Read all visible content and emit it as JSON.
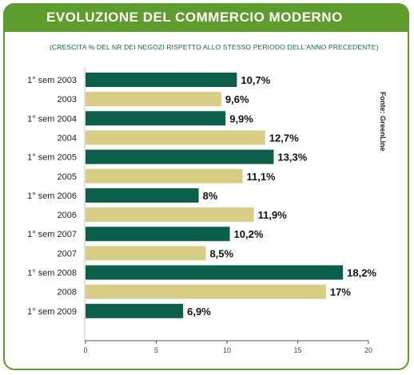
{
  "chart_data": {
    "type": "bar",
    "orientation": "horizontal",
    "title": "EVOLUZIONE DEL COMMERCIO MODERNO",
    "subtitle": "(CRESCITA % DEL NR DEI NEGOZI RISPETTO ALLO STESSO PERIODO DELL'ANNO PRECEDENTE)",
    "source": "Fonte: GreenLine",
    "categories": [
      "1° sem 2003",
      "2003",
      "1° sem 2004",
      "2004",
      "1° sem 2005",
      "2005",
      "1° sem 2006",
      "2006",
      "1° sem 2007",
      "2007",
      "1° sem 2008",
      "2008",
      "1° sem 2009"
    ],
    "values": [
      10.7,
      9.6,
      9.9,
      12.7,
      13.3,
      11.1,
      8,
      11.9,
      10.2,
      8.5,
      18.2,
      17,
      6.9
    ],
    "value_labels": [
      "10,7%",
      "9,6%",
      "9,9%",
      "12,7%",
      "13,3%",
      "11,1%",
      "8%",
      "11,9%",
      "10,2%",
      "8,5%",
      "18,2%",
      "17%",
      "6,9%"
    ],
    "xlim": [
      0,
      20
    ],
    "ticks": [
      0,
      5,
      10,
      15,
      20
    ],
    "tick_labels": [
      "0",
      "5",
      "10",
      "15",
      "20"
    ],
    "colors": {
      "half_year": "#0c5f4a",
      "full_year": "#d8cd84",
      "accent": "#5e9c2e"
    },
    "grid": false,
    "legend": "none"
  }
}
